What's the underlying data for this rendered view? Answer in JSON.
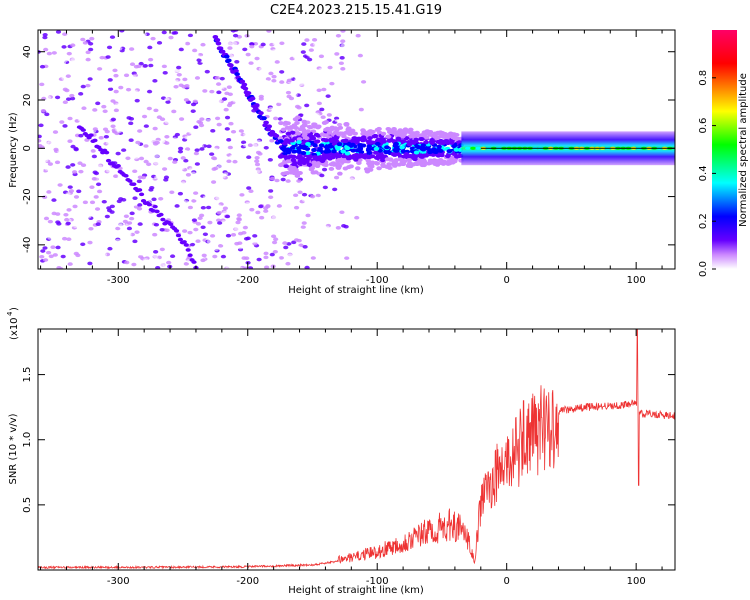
{
  "title": "C2E4.2023.215.15.41.G19",
  "chart_data": [
    {
      "type": "heatmap",
      "xlabel": "Height of straight line (km)",
      "ylabel": "Frequency (Hz)",
      "xlim": [
        -362,
        130
      ],
      "ylim": [
        -50,
        49
      ],
      "xticks": [
        -300,
        -200,
        -100,
        0,
        100
      ],
      "yticks": [
        -40,
        -20,
        0,
        20,
        40
      ],
      "tone_line_frequency": 0,
      "colorbar": {
        "label": "Normalized spectral amplitude",
        "range": [
          0.0,
          1.0
        ],
        "ticks": [
          0.0,
          0.2,
          0.4,
          0.6,
          0.8
        ],
        "tick_labels": [
          "0.0",
          "0.2",
          "0.4",
          "0.6",
          "0.8"
        ],
        "colormap": [
          "#ffffff",
          "#cc88ff",
          "#6600ff",
          "#0000ff",
          "#00ffff",
          "#00ff00",
          "#ffff00",
          "#ff0000",
          "#ff0066"
        ]
      },
      "features": [
        {
          "name": "tone",
          "from": -170,
          "to": 130,
          "frequency": 0
        },
        {
          "name": "descending-trace",
          "points": [
            [
              -225,
              45
            ],
            [
              -200,
              23
            ],
            [
              -180,
              5
            ],
            [
              -170,
              0
            ]
          ]
        },
        {
          "name": "diagonal-noise-trace",
          "points": [
            [
              -330,
              10
            ],
            [
              -290,
              -15
            ],
            [
              -250,
              -38
            ],
            [
              -240,
              -50
            ]
          ]
        }
      ]
    },
    {
      "type": "line",
      "xlabel": "Height of straight line (km)",
      "ylabel": "SNR (10 * v/v)",
      "y_scale_label": "(x10^4)",
      "xlim": [
        -362,
        130
      ],
      "ylim": [
        0,
        1.85
      ],
      "xticks": [
        -300,
        -200,
        -100,
        0,
        100
      ],
      "yticks": [
        0.5,
        1.0,
        1.5
      ],
      "ytick_labels": [
        "0.5",
        "1.0",
        "1.5"
      ],
      "series_color": "#ee3333",
      "envelope": {
        "x": [
          -362,
          -300,
          -200,
          -150,
          -120,
          -100,
          -80,
          -60,
          -40,
          -30,
          -25,
          -20,
          -10,
          0,
          10,
          20,
          30,
          40,
          60,
          80,
          95,
          100,
          103,
          110,
          130
        ],
        "y": [
          0.02,
          0.02,
          0.025,
          0.04,
          0.08,
          0.12,
          0.18,
          0.25,
          0.3,
          0.2,
          0.05,
          0.55,
          0.75,
          0.88,
          1.0,
          1.1,
          1.18,
          1.22,
          1.25,
          1.26,
          1.27,
          1.3,
          1.2,
          1.2,
          1.18
        ]
      },
      "spikes": [
        {
          "x": 101,
          "y": 1.85
        },
        {
          "x": 102,
          "y": 0.65
        },
        {
          "x": 13,
          "y": 1.3
        },
        {
          "x": 27,
          "y": 1.17
        }
      ]
    }
  ]
}
